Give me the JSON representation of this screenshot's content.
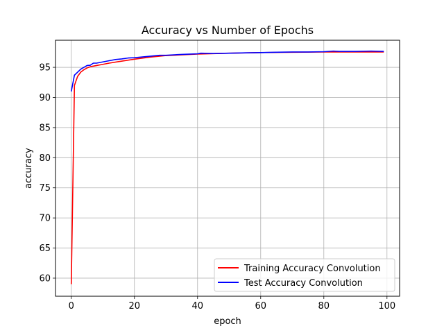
{
  "chart_data": {
    "type": "line",
    "title": "Accuracy vs Number of Epochs",
    "xlabel": "epoch",
    "ylabel": "accuracy",
    "xlim": [
      -5,
      104
    ],
    "ylim": [
      57,
      99.5
    ],
    "xticks": [
      0,
      20,
      40,
      60,
      80,
      100
    ],
    "yticks": [
      60,
      65,
      70,
      75,
      80,
      85,
      90,
      95
    ],
    "grid": true,
    "legend_position": "lower-right",
    "series": [
      {
        "name": "Training Accuracy Convolution",
        "color": "#ff0000",
        "x": [
          0,
          1,
          2,
          3,
          4,
          5,
          6,
          8,
          10,
          12,
          15,
          20,
          25,
          30,
          40,
          50,
          60,
          70,
          80,
          90,
          99
        ],
        "y": [
          59,
          92,
          93.5,
          94.2,
          94.6,
          94.9,
          95.1,
          95.3,
          95.5,
          95.7,
          95.95,
          96.35,
          96.7,
          96.95,
          97.2,
          97.35,
          97.45,
          97.5,
          97.55,
          97.55,
          97.55
        ]
      },
      {
        "name": "Test Accuracy Convolution",
        "color": "#0000ff",
        "x": [
          0,
          1,
          2,
          3,
          4,
          5,
          6,
          7,
          8,
          10,
          12,
          14,
          16,
          18,
          20,
          22,
          24,
          26,
          28,
          30,
          35,
          40,
          41,
          45,
          50,
          55,
          60,
          65,
          70,
          75,
          80,
          83,
          85,
          90,
          95,
          99
        ],
        "y": [
          91,
          93.7,
          94.2,
          94.7,
          95,
          95.3,
          95.35,
          95.7,
          95.7,
          95.9,
          96.1,
          96.3,
          96.4,
          96.55,
          96.6,
          96.7,
          96.8,
          96.9,
          97,
          97,
          97.15,
          97.25,
          97.35,
          97.3,
          97.35,
          97.4,
          97.45,
          97.5,
          97.55,
          97.55,
          97.6,
          97.7,
          97.65,
          97.65,
          97.7,
          97.65
        ]
      }
    ]
  }
}
